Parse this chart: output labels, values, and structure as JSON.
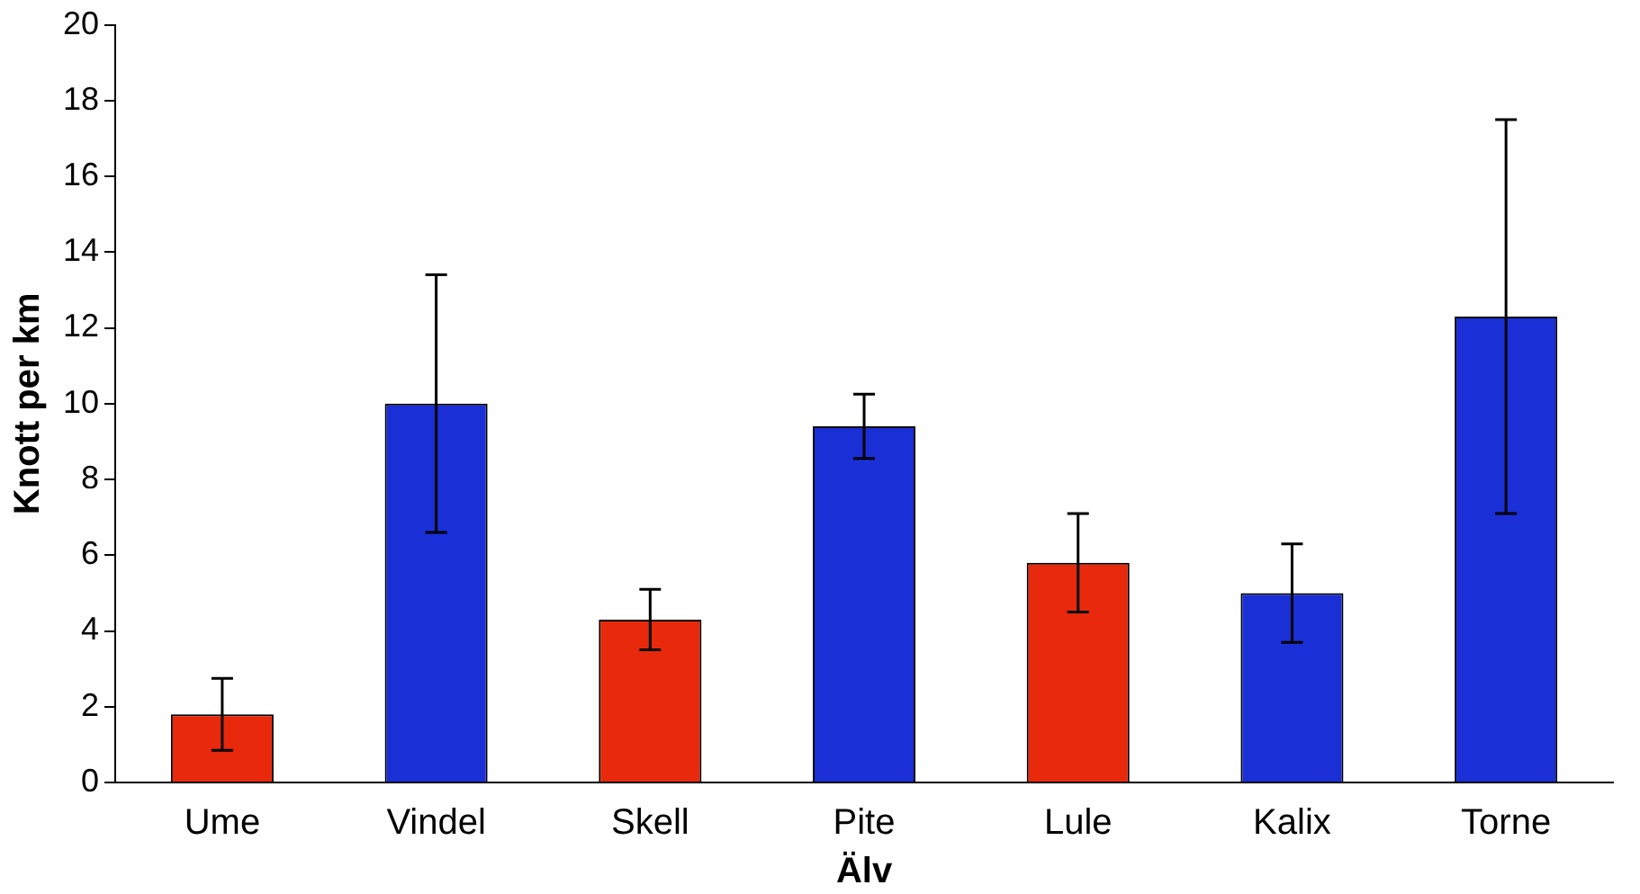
{
  "chart_data": {
    "type": "bar",
    "xlabel": "Älv",
    "ylabel": "Knott per km",
    "categories": [
      "Ume",
      "Vindel",
      "Skell",
      "Pite",
      "Lule",
      "Kalix",
      "Torne"
    ],
    "values": [
      1.8,
      10.0,
      4.3,
      9.4,
      5.8,
      5.0,
      12.3
    ],
    "errors": [
      0.95,
      3.4,
      0.8,
      0.85,
      1.3,
      1.3,
      5.2
    ],
    "colors": [
      "#e8290b",
      "#1a2fd6",
      "#e8290b",
      "#1a2fd6",
      "#e8290b",
      "#1a2fd6",
      "#1a2fd6"
    ],
    "ylim": [
      0,
      20
    ],
    "yticks": [
      0,
      2,
      4,
      6,
      8,
      10,
      12,
      14,
      16,
      18,
      20
    ],
    "grid": false,
    "legend": false
  }
}
